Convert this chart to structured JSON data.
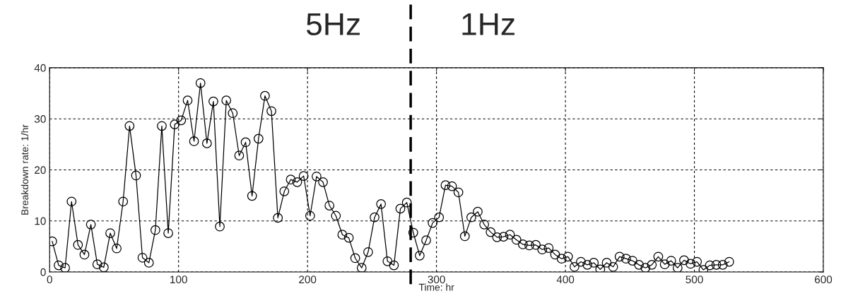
{
  "chart_data": {
    "type": "line",
    "xlabel": "Time: hr",
    "ylabel": "Breakdown rate: 1/hr",
    "xlim": [
      0,
      600
    ],
    "ylim": [
      0,
      40
    ],
    "xticks": [
      0,
      100,
      200,
      300,
      400,
      500,
      600
    ],
    "yticks": [
      0,
      10,
      20,
      30,
      40
    ],
    "grid": true,
    "marker": "circle",
    "line_style": "solid",
    "ref_lines": [
      {
        "axis": "x",
        "value": 280,
        "color": "#000000",
        "line_style": "dashed"
      }
    ],
    "annotations": [
      "5Hz",
      "1Hz"
    ],
    "series": [
      {
        "color": "#000000",
        "x": [
          2,
          7,
          12,
          17,
          22,
          27,
          32,
          37,
          42,
          47,
          52,
          57,
          62,
          67,
          72,
          77,
          82,
          87,
          92,
          97,
          102,
          107,
          112,
          117,
          122,
          127,
          132,
          137,
          142,
          147,
          152,
          157,
          162,
          167,
          172,
          177,
          182,
          187,
          192,
          197,
          202,
          207,
          212,
          217,
          222,
          227,
          232,
          237,
          242,
          247,
          252,
          257,
          262,
          267,
          272,
          277,
          282,
          287,
          292,
          297,
          302,
          307,
          312,
          317,
          322,
          327,
          332,
          337,
          342,
          347,
          352,
          357,
          362,
          367,
          372,
          377,
          382,
          387,
          392,
          397,
          402,
          407,
          412,
          417,
          422,
          427,
          432,
          437,
          442,
          447,
          452,
          457,
          462,
          467,
          472,
          477,
          482,
          487,
          492,
          497,
          502,
          507,
          512,
          517,
          522,
          527
        ],
        "values": [
          6,
          1.3,
          0.8,
          13.8,
          5.3,
          3.4,
          9.3,
          1.5,
          0.9,
          7.6,
          4.6,
          13.8,
          28.6,
          18.9,
          2.8,
          1.8,
          8.2,
          28.6,
          7.6,
          28.9,
          29.7,
          33.6,
          25.6,
          37,
          25.2,
          33.4,
          8.9,
          33.6,
          31.1,
          22.8,
          25.4,
          14.9,
          26.1,
          34.5,
          31.5,
          10.6,
          15.8,
          18.1,
          17.6,
          18.8,
          11,
          18.7,
          17.6,
          13,
          11,
          7.3,
          6.7,
          2.7,
          0.8,
          3.9,
          10.7,
          13.3,
          2.1,
          1.3,
          12.4,
          13.6,
          7.7,
          3.2,
          6.2,
          9.6,
          10.7,
          17,
          16.8,
          15.6,
          7,
          10.7,
          11.8,
          9.3,
          7.8,
          6.8,
          6.9,
          7.3,
          6.3,
          5.4,
          5.2,
          5.3,
          4.4,
          4.7,
          3.4,
          2.6,
          3,
          1,
          2,
          1.4,
          1.8,
          0.5,
          1.8,
          1,
          3,
          2.6,
          2.2,
          1.4,
          0.8,
          1.4,
          3,
          1.5,
          2.2,
          0.8,
          2.3,
          1.6,
          2,
          0.4,
          1.3,
          1.4,
          1.4,
          2
        ]
      }
    ]
  }
}
